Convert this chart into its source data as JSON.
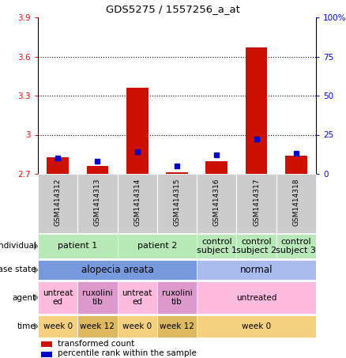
{
  "title": "GDS5275 / 1557256_a_at",
  "samples": [
    "GSM1414312",
    "GSM1414313",
    "GSM1414314",
    "GSM1414315",
    "GSM1414316",
    "GSM1414317",
    "GSM1414318"
  ],
  "red_bars": [
    2.83,
    2.76,
    3.36,
    2.71,
    2.8,
    3.67,
    2.84
  ],
  "blue_pct": [
    10,
    8,
    14,
    5,
    12,
    22,
    13
  ],
  "ylim": [
    2.7,
    3.9
  ],
  "yticks_left": [
    2.7,
    3.0,
    3.3,
    3.6,
    3.9
  ],
  "yticks_right": [
    0,
    25,
    50,
    75,
    100
  ],
  "ytick_labels_left": [
    "2.7",
    "3",
    "3.3",
    "3.6",
    "3.9"
  ],
  "ytick_labels_right": [
    "0",
    "25",
    "50",
    "75",
    "100%"
  ],
  "dotted_lines": [
    3.0,
    3.3,
    3.6
  ],
  "baseline": 2.7,
  "individual_spans": [
    {
      "label": "patient 1",
      "start": 0,
      "end": 2,
      "color": "#b8e8b8"
    },
    {
      "label": "patient 2",
      "start": 2,
      "end": 4,
      "color": "#b8e8b8"
    },
    {
      "label": "control\nsubject 1",
      "start": 4,
      "end": 5,
      "color": "#b8e8b8"
    },
    {
      "label": "control\nsubject 2",
      "start": 5,
      "end": 6,
      "color": "#b8e8b8"
    },
    {
      "label": "control\nsubject 3",
      "start": 6,
      "end": 7,
      "color": "#b8e8b8"
    }
  ],
  "disease_spans": [
    {
      "label": "alopecia areata",
      "start": 0,
      "end": 4,
      "color": "#7799dd"
    },
    {
      "label": "normal",
      "start": 4,
      "end": 7,
      "color": "#aabbee"
    }
  ],
  "agent_spans": [
    {
      "label": "untreat\ned",
      "start": 0,
      "end": 1,
      "color": "#ffbbdd"
    },
    {
      "label": "ruxolini\ntib",
      "start": 1,
      "end": 2,
      "color": "#dd99cc"
    },
    {
      "label": "untreat\ned",
      "start": 2,
      "end": 3,
      "color": "#ffbbdd"
    },
    {
      "label": "ruxolini\ntib",
      "start": 3,
      "end": 4,
      "color": "#dd99cc"
    },
    {
      "label": "untreated",
      "start": 4,
      "end": 7,
      "color": "#ffbbdd"
    }
  ],
  "time_spans": [
    {
      "label": "week 0",
      "start": 0,
      "end": 1,
      "color": "#f5d080"
    },
    {
      "label": "week 12",
      "start": 1,
      "end": 2,
      "color": "#ddb860"
    },
    {
      "label": "week 0",
      "start": 2,
      "end": 3,
      "color": "#f5d080"
    },
    {
      "label": "week 12",
      "start": 3,
      "end": 4,
      "color": "#ddb860"
    },
    {
      "label": "week 0",
      "start": 4,
      "end": 7,
      "color": "#f5d080"
    }
  ],
  "row_labels": [
    "individual",
    "disease state",
    "agent",
    "time"
  ],
  "bar_color": "#cc1100",
  "marker_color": "#0000cc",
  "sample_bg": "#cccccc",
  "sample_sep_color": "#ffffff",
  "row_sep_color": "#ffffff"
}
